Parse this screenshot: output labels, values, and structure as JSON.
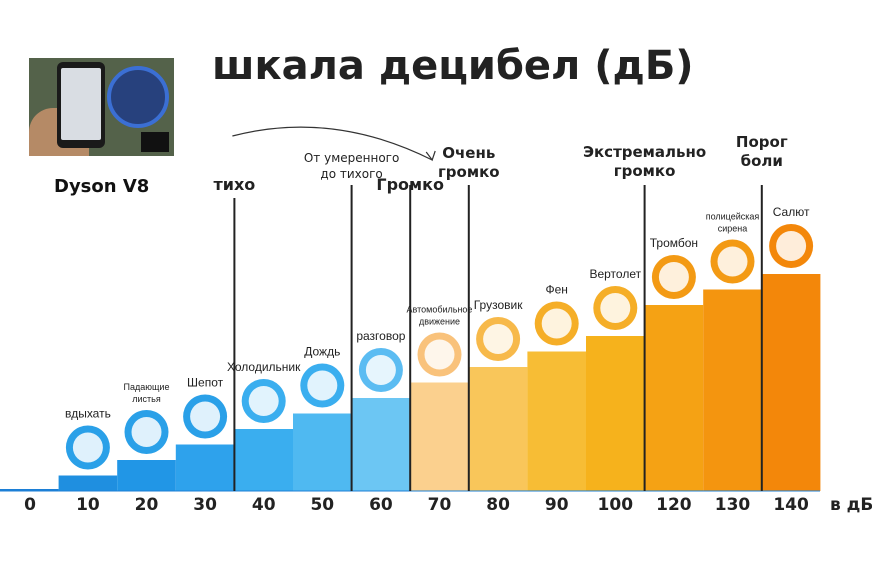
{
  "title": "шкала децибел (дБ)",
  "photo_caption": "Dyson V8",
  "chart_data": {
    "type": "bar",
    "title": "шкала децибел (дБ)",
    "xlabel": "в дБ",
    "ylabel": "",
    "categories": [
      "0",
      "10",
      "20",
      "30",
      "40",
      "50",
      "60",
      "70",
      "80",
      "90",
      "100",
      "120",
      "130",
      "140"
    ],
    "values": [
      0,
      10,
      20,
      30,
      40,
      50,
      60,
      70,
      80,
      90,
      100,
      120,
      130,
      140
    ],
    "ylim": [
      0,
      140
    ],
    "colors": [
      "#1c7fd6",
      "#1f8fe0",
      "#2196e6",
      "#2ea2ec",
      "#3aaeef",
      "#4fb9f1",
      "#6cc6f3",
      "#fbd08e",
      "#f9c65a",
      "#f7bd35",
      "#f6b21c",
      "#f5a214",
      "#f4950f",
      "#f3870a"
    ],
    "sounds": [
      {
        "category": "10",
        "label": "вдыхать",
        "icon": "lungs-icon",
        "color": "#2aa0e8"
      },
      {
        "category": "20",
        "label": "Падающие листья",
        "icon": "leaf-icon",
        "color": "#2aa0e8"
      },
      {
        "category": "30",
        "label": "Шепот",
        "icon": "whisper-icon",
        "color": "#2aa0e8"
      },
      {
        "category": "40",
        "label": "Холодильник",
        "icon": "fridge-icon",
        "color": "#3aaeef"
      },
      {
        "category": "50",
        "label": "Дождь",
        "icon": "rain-cloud-icon",
        "color": "#3aaeef"
      },
      {
        "category": "60",
        "label": "разговор",
        "icon": "speech-bubble-icon",
        "color": "#5bbcf2"
      },
      {
        "category": "70",
        "label": "Автомобильное движение",
        "icon": "car-icon",
        "color": "#f9c27b"
      },
      {
        "category": "80",
        "label": "Грузовик",
        "icon": "truck-icon",
        "color": "#f7b94a"
      },
      {
        "category": "90",
        "label": "Фен",
        "icon": "hair-dryer-icon",
        "color": "#f5ae27"
      },
      {
        "category": "100",
        "label": "Вертолет",
        "icon": "helicopter-icon",
        "color": "#f5ae27"
      },
      {
        "category": "120",
        "label": "Тромбон",
        "icon": "trombone-icon",
        "color": "#f39a14"
      },
      {
        "category": "130",
        "label": "полицейская сирена",
        "icon": "police-car-icon",
        "color": "#f39a14"
      },
      {
        "category": "140",
        "label": "Салют",
        "icon": "fireworks-icon",
        "color": "#f3870a"
      }
    ],
    "zones": [
      {
        "label": "тихо",
        "at": "40"
      },
      {
        "label": "От умеренного до тихого",
        "at": "60"
      },
      {
        "label": "Громко",
        "at": "70"
      },
      {
        "label": "Очень громко",
        "at": "80"
      },
      {
        "label": "Экстремально громко",
        "at": "120"
      },
      {
        "label": "Порог боли",
        "at": "140"
      }
    ],
    "grid": false,
    "legend": "none"
  }
}
